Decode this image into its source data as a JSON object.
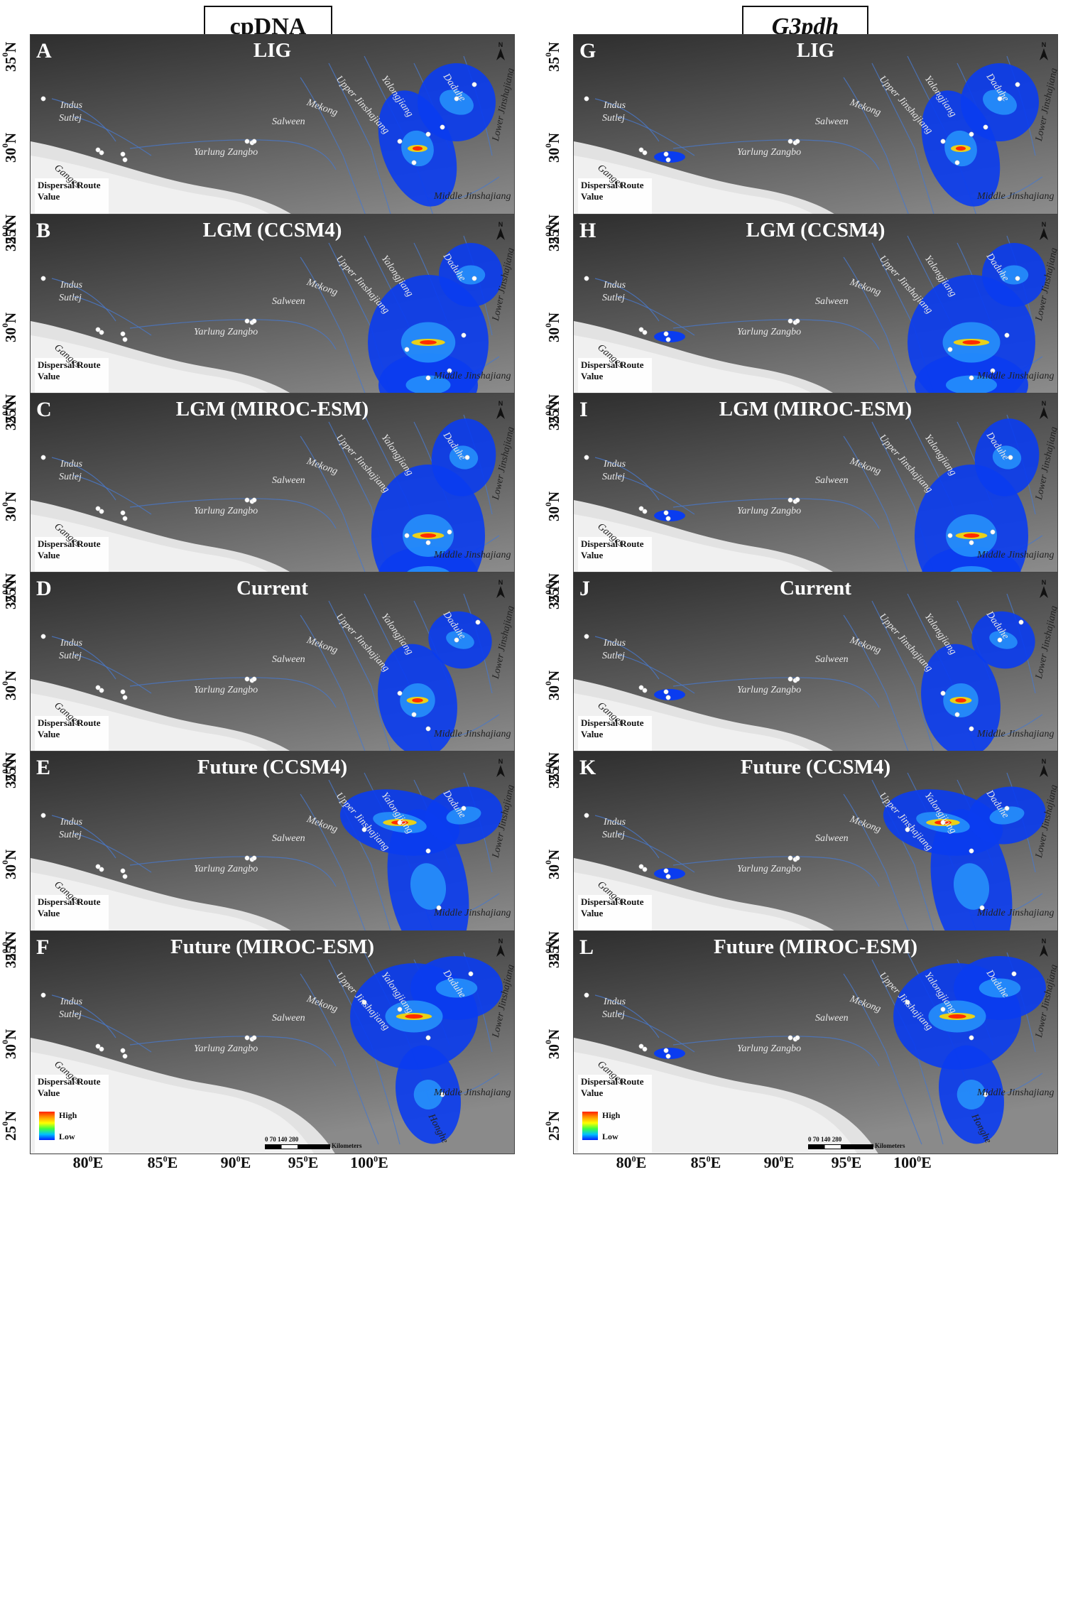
{
  "column_headers": [
    "cpDNA",
    "G3pdh"
  ],
  "panels": [
    {
      "letter": "A",
      "title": "LIG",
      "col": 0,
      "row": 0
    },
    {
      "letter": "B",
      "title": "LGM (CCSM4)",
      "col": 0,
      "row": 1
    },
    {
      "letter": "C",
      "title": "LGM (MIROC-ESM)",
      "col": 0,
      "row": 2
    },
    {
      "letter": "D",
      "title": "Current",
      "col": 0,
      "row": 3
    },
    {
      "letter": "E",
      "title": "Future (CCSM4)",
      "col": 0,
      "row": 4
    },
    {
      "letter": "F",
      "title": "Future (MIROC-ESM)",
      "col": 0,
      "row": 5
    },
    {
      "letter": "G",
      "title": "LIG",
      "col": 1,
      "row": 0
    },
    {
      "letter": "H",
      "title": "LGM (CCSM4)",
      "col": 1,
      "row": 1
    },
    {
      "letter": "I",
      "title": "LGM (MIROC-ESM)",
      "col": 1,
      "row": 2
    },
    {
      "letter": "J",
      "title": "Current",
      "col": 1,
      "row": 3
    },
    {
      "letter": "K",
      "title": "Future (CCSM4)",
      "col": 1,
      "row": 4
    },
    {
      "letter": "L",
      "title": "Future (MIROC-ESM)",
      "col": 1,
      "row": 5
    }
  ],
  "rivers": [
    "Indus",
    "Sutlej",
    "Ganges",
    "Yarlung Zangbo",
    "Salween",
    "Mekong",
    "Upper Jinshajiang",
    "Yalongjiang",
    "Daduhe",
    "Lower Jinshajiang",
    "Middle Jinshajiang",
    "Honghe"
  ],
  "legend": {
    "title_line1": "Dispersal Route",
    "title_line2": "Value",
    "high": "High",
    "low": "Low"
  },
  "scale_bar": {
    "ticks": "0   70  140    280",
    "unit": "Kilometers"
  },
  "north_label": "N",
  "longitude_labels": [
    "80",
    "85",
    "90",
    "95",
    "100"
  ],
  "longitude_suffix": "E",
  "latitude_labels": [
    "35",
    "30",
    "25"
  ],
  "latitude_suffix": "N",
  "degree_symbol": "0",
  "colors": {
    "terrain_dark": "#3a3a3a",
    "terrain_light": "#e6e6e6",
    "route_low": "#0020ff",
    "route_high": "#ff2000",
    "river": "#4a78c8"
  }
}
